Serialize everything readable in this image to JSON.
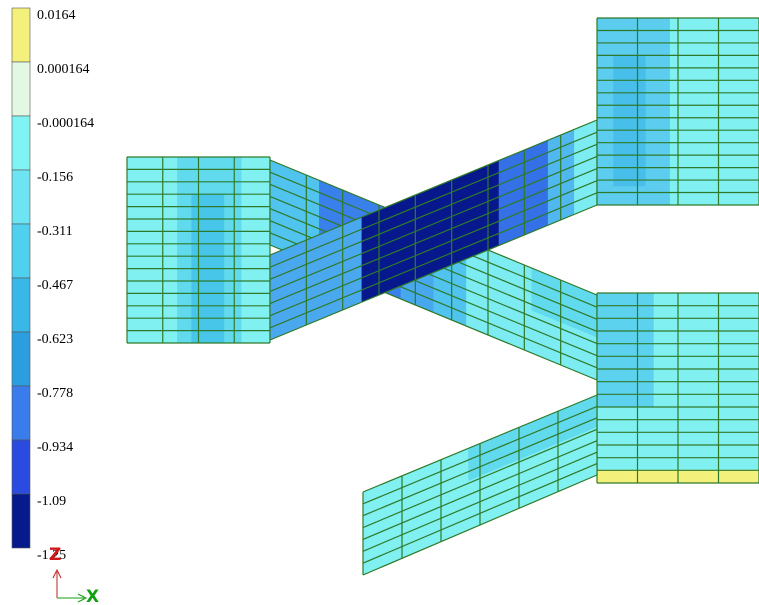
{
  "legend": {
    "labels": [
      "0.0164",
      "0.000164",
      "-0.000164",
      "-0.156",
      "-0.311",
      "-0.467",
      "-0.623",
      "-0.778",
      "-0.934",
      "-1.09",
      "-1.25"
    ],
    "colors": [
      "#f4f07c",
      "#e2f8e2",
      "#80f4f4",
      "#6ce4f2",
      "#4fd0ee",
      "#38b8e8",
      "#2a9ee0",
      "#3a7cec",
      "#2a4ae0",
      "#061a8c"
    ]
  },
  "triad": {
    "z": "Z",
    "x": "X"
  }
}
